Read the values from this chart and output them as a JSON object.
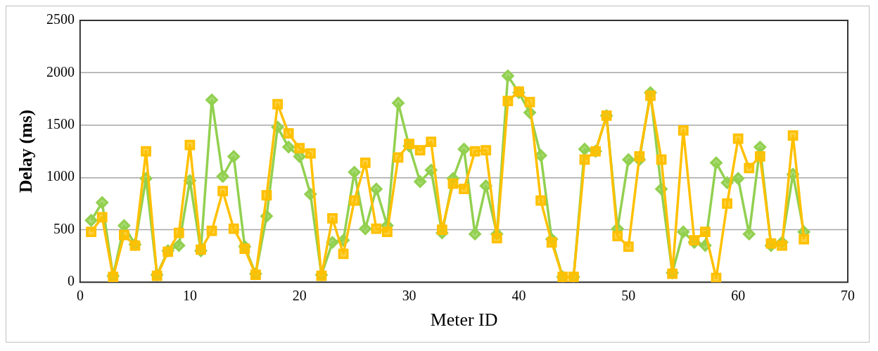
{
  "chart_data": {
    "type": "line",
    "xlabel": "Meter ID",
    "ylabel": "Delay (ms)",
    "x": [
      1,
      2,
      3,
      4,
      5,
      6,
      7,
      8,
      9,
      10,
      11,
      12,
      13,
      14,
      15,
      16,
      17,
      18,
      19,
      20,
      21,
      22,
      23,
      24,
      25,
      26,
      27,
      28,
      29,
      30,
      31,
      32,
      33,
      34,
      35,
      36,
      37,
      38,
      39,
      40,
      41,
      42,
      43,
      44,
      45,
      46,
      47,
      48,
      49,
      50,
      51,
      52,
      53,
      54,
      55,
      56,
      57,
      58,
      59,
      60,
      61,
      62,
      63,
      64,
      65,
      66
    ],
    "series": [
      {
        "color": "#ffc000",
        "marker": "square",
        "values": [
          480,
          620,
          50,
          450,
          350,
          1250,
          60,
          290,
          470,
          1310,
          310,
          490,
          870,
          510,
          320,
          70,
          830,
          1700,
          1420,
          1280,
          1230,
          60,
          610,
          270,
          780,
          1140,
          510,
          480,
          1190,
          1320,
          1260,
          1340,
          500,
          940,
          890,
          1250,
          1260,
          420,
          1730,
          1820,
          1720,
          780,
          380,
          50,
          50,
          1170,
          1250,
          1590,
          440,
          340,
          1200,
          1780,
          1170,
          80,
          1450,
          400,
          480,
          40,
          750,
          1370,
          1090,
          1200,
          370,
          350,
          1400,
          410
        ]
      },
      {
        "color": "#92d050",
        "marker": "diamond",
        "values": [
          590,
          760,
          60,
          540,
          360,
          990,
          70,
          300,
          350,
          970,
          300,
          1740,
          1010,
          1200,
          340,
          80,
          630,
          1480,
          1290,
          1200,
          840,
          70,
          380,
          400,
          1050,
          510,
          890,
          540,
          1710,
          1300,
          960,
          1070,
          470,
          990,
          1270,
          460,
          920,
          460,
          1970,
          1810,
          1620,
          1210,
          410,
          50,
          50,
          1270,
          1250,
          1590,
          510,
          1170,
          1170,
          1810,
          890,
          90,
          480,
          380,
          350,
          1140,
          950,
          990,
          460,
          1290,
          350,
          380,
          1030,
          480
        ]
      }
    ],
    "xlim": [
      0,
      70
    ],
    "xticks": [
      0,
      10,
      20,
      30,
      40,
      50,
      60,
      70
    ],
    "ylim": [
      0,
      2500
    ],
    "yticks": [
      0,
      500,
      1000,
      1500,
      2000,
      2500
    ],
    "grid": "y",
    "legend": false,
    "line_style": "solid"
  }
}
